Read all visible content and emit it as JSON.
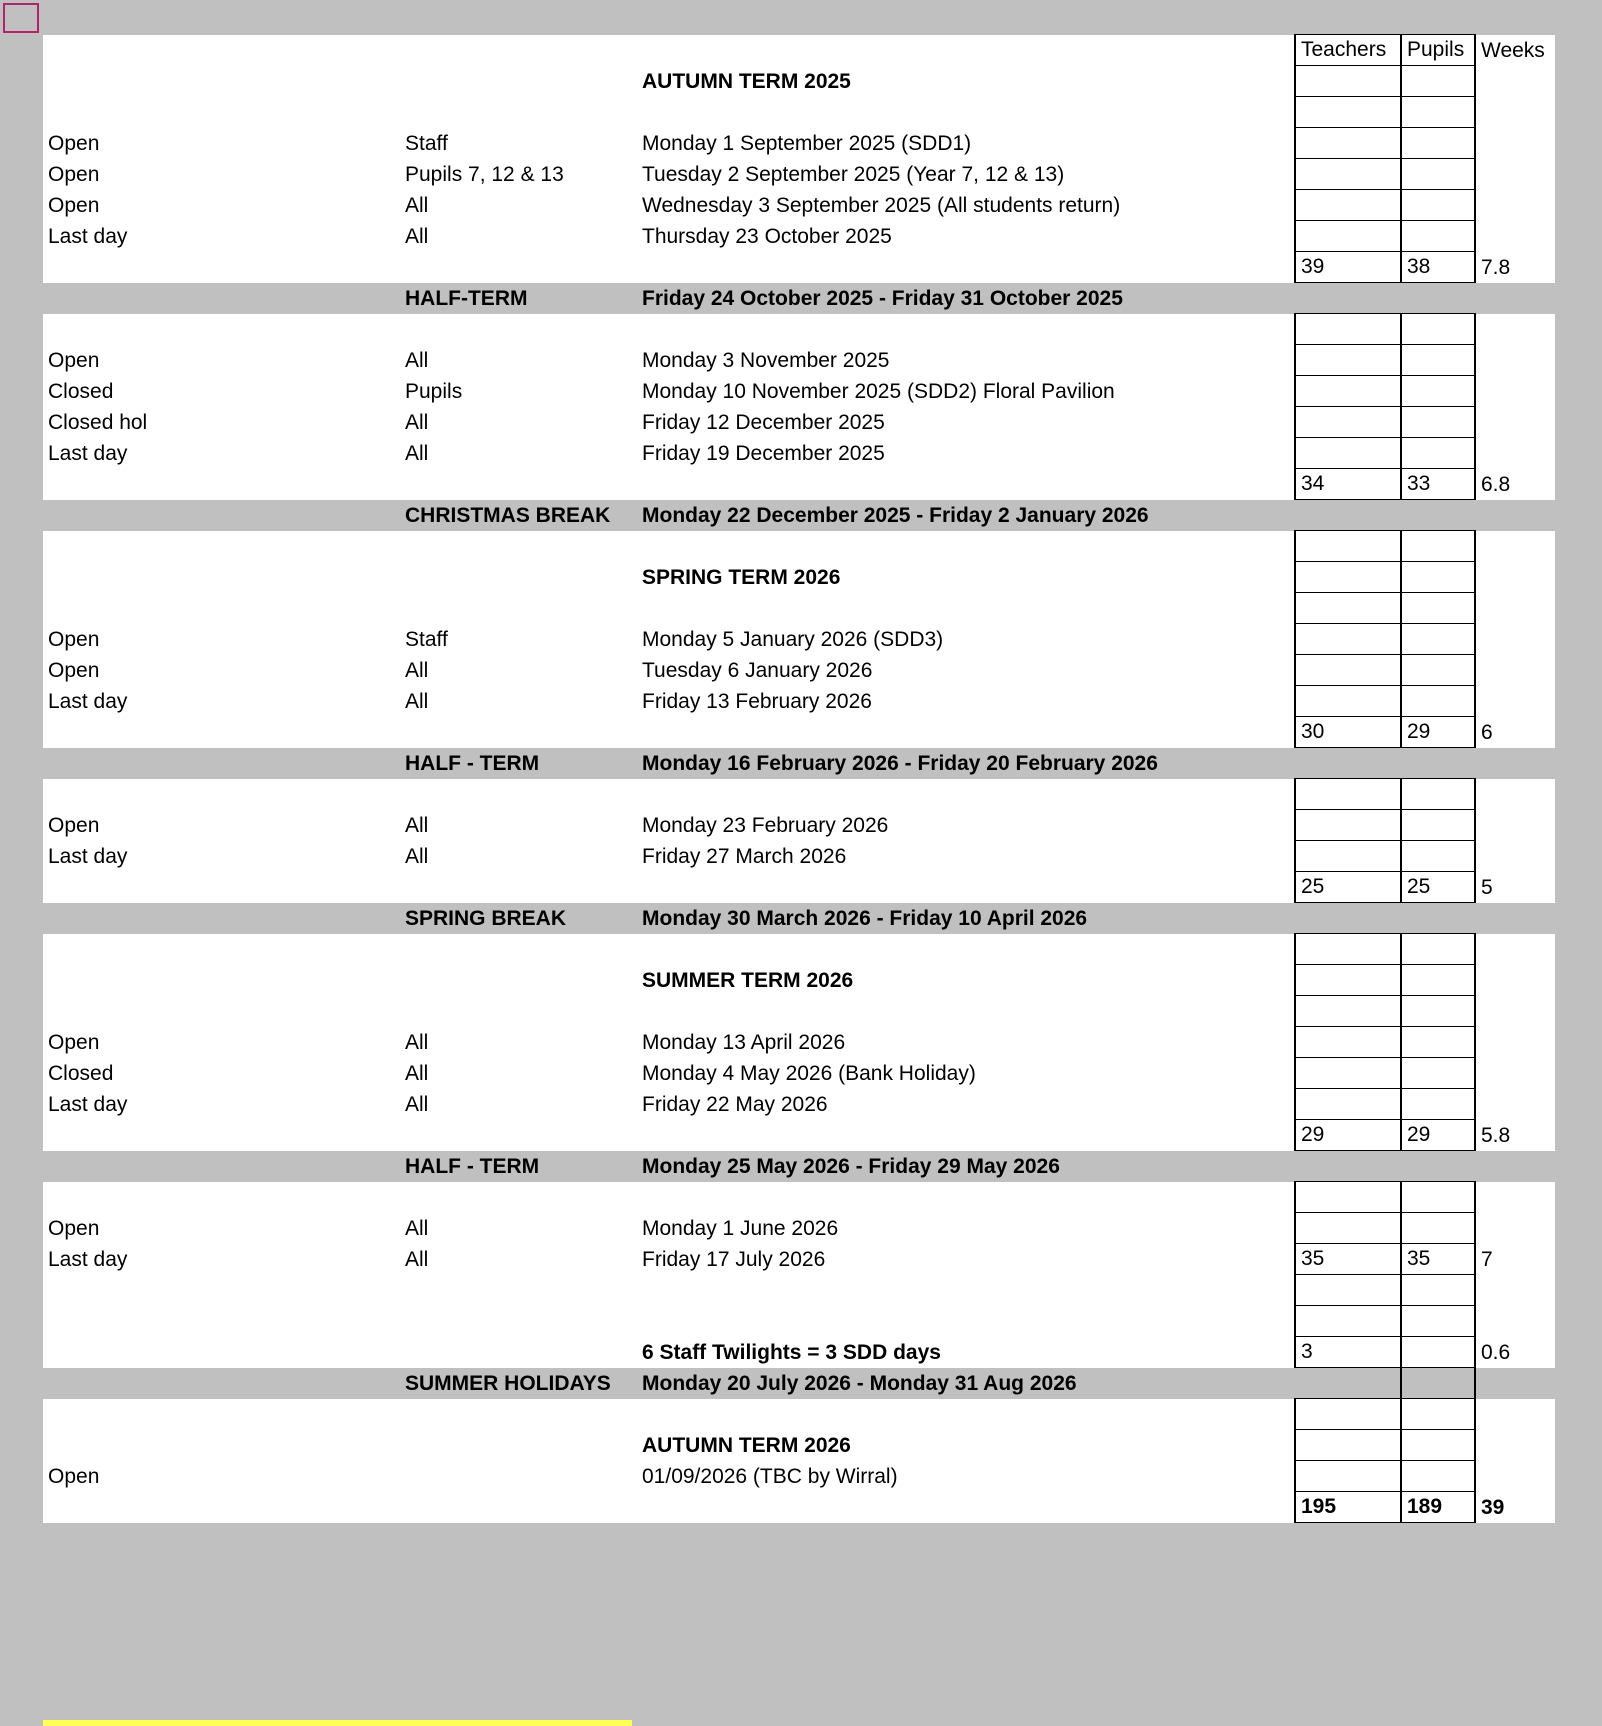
{
  "header": {
    "teachers": "Teachers",
    "pupils": "Pupils",
    "weeks": "Weeks"
  },
  "colors": {
    "background": "#c0c0c0",
    "selection": "#b0246a",
    "highlight": "#ffff55"
  },
  "rows": [
    {
      "type": "header"
    },
    {
      "type": "title",
      "c": "AUTUMN TERM 2025"
    },
    {
      "type": "blank"
    },
    {
      "type": "entry",
      "a": "Open",
      "b": "Staff",
      "c": "Monday 1 September 2025 (SDD1)"
    },
    {
      "type": "entry",
      "a": "Open",
      "b": "Pupils 7, 12 & 13",
      "c": "Tuesday 2 September 2025 (Year 7, 12 & 13)"
    },
    {
      "type": "entry",
      "a": "Open",
      "b": "All",
      "c": "Wednesday 3 September 2025 (All students return)"
    },
    {
      "type": "entry",
      "a": "Last day",
      "b": "All",
      "c": "Thursday 23 October 2025"
    },
    {
      "type": "total",
      "t": "39",
      "p": "38",
      "w": "7.8"
    },
    {
      "type": "break",
      "b": "HALF-TERM",
      "c": "Friday 24 October 2025 - Friday 31 October 2025"
    },
    {
      "type": "blank"
    },
    {
      "type": "entry",
      "a": "Open",
      "b": "All",
      "c": "Monday 3 November 2025"
    },
    {
      "type": "entry",
      "a": "Closed",
      "b": "Pupils",
      "c": "Monday 10 November 2025 (SDD2) Floral Pavilion"
    },
    {
      "type": "entry",
      "a": "Closed hol",
      "b": "All",
      "c": "Friday 12 December 2025"
    },
    {
      "type": "entry",
      "a": "Last day",
      "b": "All",
      "c": "Friday 19 December 2025"
    },
    {
      "type": "total",
      "t": "34",
      "p": "33",
      "w": "6.8"
    },
    {
      "type": "break",
      "b": "CHRISTMAS BREAK",
      "c": "Monday 22 December 2025 - Friday 2 January 2026"
    },
    {
      "type": "blank"
    },
    {
      "type": "title",
      "c": "SPRING TERM 2026"
    },
    {
      "type": "blank"
    },
    {
      "type": "entry",
      "a": "Open",
      "b": "Staff",
      "c": "Monday 5 January 2026 (SDD3)"
    },
    {
      "type": "entry",
      "a": "Open",
      "b": "All",
      "c": "Tuesday 6 January 2026"
    },
    {
      "type": "entry",
      "a": "Last day",
      "b": "All",
      "c": "Friday 13 February 2026"
    },
    {
      "type": "total",
      "t": "30",
      "p": "29",
      "w": "6"
    },
    {
      "type": "break",
      "b": "HALF - TERM",
      "c": "Monday 16 February 2026 - Friday 20 February 2026"
    },
    {
      "type": "blank"
    },
    {
      "type": "entry",
      "a": "Open",
      "b": "All",
      "c": "Monday 23 February 2026"
    },
    {
      "type": "entry",
      "a": "Last day",
      "b": "All",
      "c": "Friday 27 March 2026"
    },
    {
      "type": "total",
      "t": "25",
      "p": "25",
      "w": "5"
    },
    {
      "type": "break",
      "b": "SPRING BREAK",
      "c": "Monday 30 March 2026 - Friday 10 April 2026"
    },
    {
      "type": "blank"
    },
    {
      "type": "title",
      "c": "SUMMER TERM 2026"
    },
    {
      "type": "blank"
    },
    {
      "type": "entry",
      "a": "Open",
      "b": "All",
      "c": "Monday 13 April 2026"
    },
    {
      "type": "entry",
      "a": "Closed",
      "b": "All",
      "c": "Monday 4 May 2026 (Bank Holiday)"
    },
    {
      "type": "entry",
      "a": "Last day",
      "b": "All",
      "c": "Friday 22 May 2026"
    },
    {
      "type": "total",
      "t": "29",
      "p": "29",
      "w": "5.8"
    },
    {
      "type": "break",
      "b": "HALF - TERM",
      "c": "Monday 25 May 2026 - Friday 29 May 2026"
    },
    {
      "type": "blank"
    },
    {
      "type": "entry",
      "a": "Open",
      "b": "All",
      "c": "Monday 1 June 2026"
    },
    {
      "type": "entry",
      "a": "Last day",
      "b": "All",
      "c": "Friday 17 July 2026",
      "t": "35",
      "p": "35",
      "w": "7"
    },
    {
      "type": "blank"
    },
    {
      "type": "blank"
    },
    {
      "type": "note",
      "c": "6 Staff Twilights = 3 SDD days",
      "t": "3",
      "w": "0.6"
    },
    {
      "type": "break",
      "b": "SUMMER HOLIDAYS",
      "c": "Monday 20 July 2026 - Monday 31 Aug 2026",
      "pupilsBox": true
    },
    {
      "type": "blank"
    },
    {
      "type": "title",
      "c": "AUTUMN TERM 2026"
    },
    {
      "type": "entry",
      "a": "Open",
      "c": "01/09/2026 (TBC by Wirral)"
    },
    {
      "type": "grandtotal",
      "t": "195",
      "p": "189",
      "w": "39"
    }
  ]
}
